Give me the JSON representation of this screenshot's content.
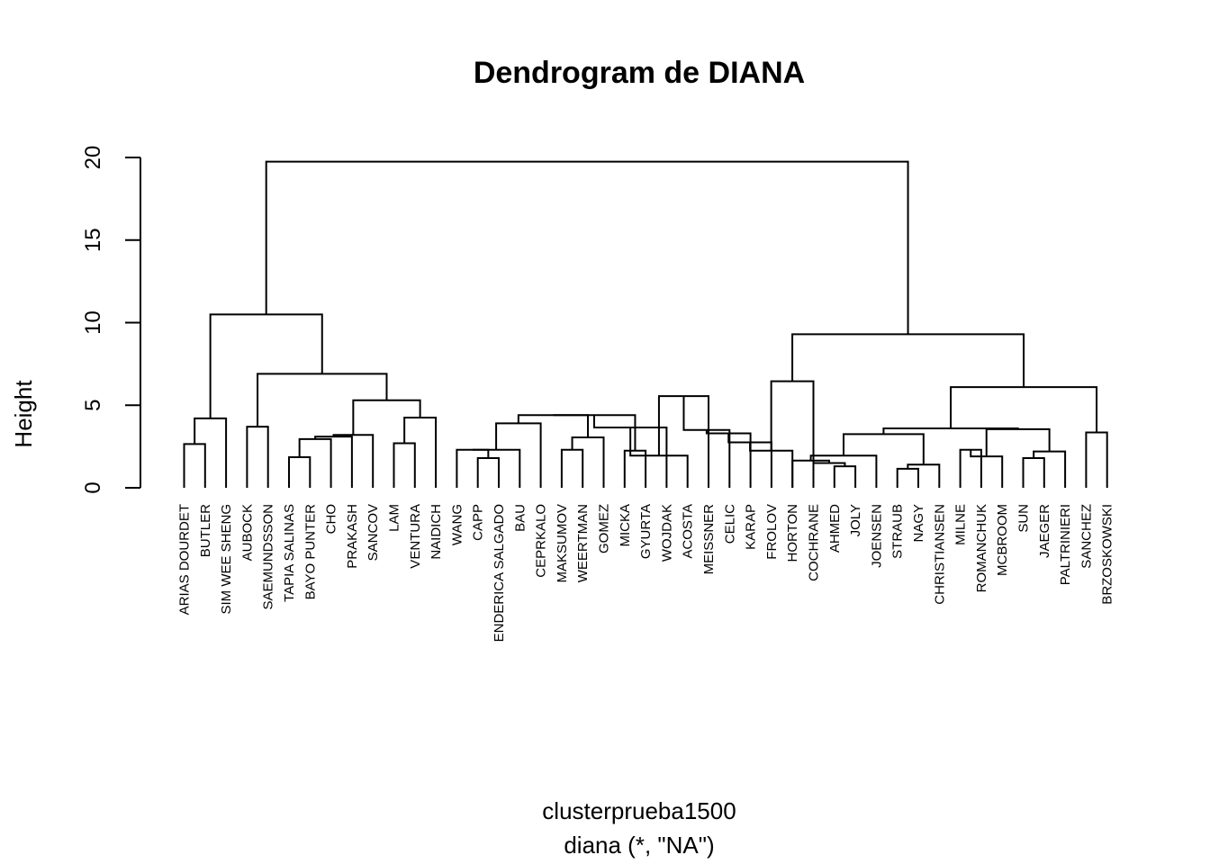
{
  "chart_data": {
    "type": "dendrogram",
    "title": "Dendrogram de DIANA",
    "ylabel": "Height",
    "xlabel": "clusterprueba1500",
    "sublabel": "diana (*, \"NA\")",
    "ylim": [
      0,
      20
    ],
    "yticks": [
      0,
      5,
      10,
      15,
      20
    ],
    "leaves": [
      "ARIAS DOURDET",
      "BUTLER",
      "SIM WEE SHENG",
      "AUBOCK",
      "SAEMUNDSSON",
      "TAPIA SALINAS",
      "BAYO PUNTER",
      "CHO",
      "PRAKASH",
      "SANCOV",
      "LAM",
      "VENTURA",
      "NAIDICH",
      "WANG",
      "CAPP",
      "ENDERICA SALGADO",
      "BAU",
      "CEPRKALO",
      "MAKSUMOV",
      "WEERTMAN",
      "GOMEZ",
      "MICKA",
      "GYURTA",
      "WOJDAK",
      "ACOSTA",
      "MEISSNER",
      "CELIC",
      "KARAP",
      "FROLOV",
      "HORTON",
      "COCHRANE",
      "AHMED",
      "JOLY",
      "JOENSEN",
      "STRAUB",
      "NAGY",
      "CHRISTIANSEN",
      "MILNE",
      "ROMANCHUK",
      "MCBROOM",
      "SUN",
      "JAEGER",
      "PALTRINIERI",
      "SANCHEZ",
      "BRZOSKOWSKI"
    ],
    "merges": [
      {
        "a": "L0",
        "b": "L1",
        "h": 2.65
      },
      {
        "a": "M0",
        "b": "L2",
        "h": 4.2
      },
      {
        "a": "L3",
        "b": "L4",
        "h": 3.7
      },
      {
        "a": "L5",
        "b": "L6",
        "h": 1.85
      },
      {
        "a": "M3",
        "b": "L7",
        "h": 2.95
      },
      {
        "a": "M4",
        "b": "L8",
        "h": 3.1
      },
      {
        "a": "M5",
        "b": "L9",
        "h": 3.2
      },
      {
        "a": "L10",
        "b": "L11",
        "h": 2.7
      },
      {
        "a": "L12",
        "b": "M7",
        "h": 4.25
      },
      {
        "a": "M6",
        "b": "M8",
        "h": 5.3
      },
      {
        "a": "M2",
        "b": "M9",
        "h": 6.9
      },
      {
        "a": "M1",
        "b": "M10",
        "h": 10.5
      },
      {
        "a": "L14",
        "b": "L15",
        "h": 1.8
      },
      {
        "a": "L13",
        "b": "M12",
        "h": 2.3
      },
      {
        "a": "M13",
        "b": "L16",
        "h": 2.3
      },
      {
        "a": "M14",
        "b": "L17",
        "h": 3.9
      },
      {
        "a": "L18",
        "b": "L19",
        "h": 2.3
      },
      {
        "a": "M16",
        "b": "L20",
        "h": 3.05
      },
      {
        "a": "L21",
        "b": "L22",
        "h": 2.25
      },
      {
        "a": "M15",
        "b": "M17",
        "h": 4.4
      },
      {
        "a": "M18",
        "b": "M19",
        "h": 4.4
      },
      {
        "a": "M20",
        "b": "L23",
        "h": 3.65
      },
      {
        "a": "M21",
        "b": "L24",
        "h": 1.95
      },
      {
        "a": "M22",
        "b": "L25",
        "h": 5.55
      },
      {
        "a": "M23",
        "b": "L26",
        "h": 3.5
      },
      {
        "a": "M24",
        "b": "L27",
        "h": 3.3
      },
      {
        "a": "M25",
        "b": "L28",
        "h": 2.75
      },
      {
        "a": "M26",
        "b": "L29",
        "h": 2.25
      },
      {
        "a": "M27",
        "b": "L30",
        "h": 6.45
      },
      {
        "a": "L31",
        "b": "L32",
        "h": 1.3
      },
      {
        "a": "L30",
        "b": "M29",
        "h": 1.5
      },
      {
        "a": "L29",
        "b": "M30",
        "h": 1.65
      },
      {
        "a": "M31",
        "b": "L33",
        "h": 1.95
      },
      {
        "a": "L34",
        "b": "L35",
        "h": 1.15
      },
      {
        "a": "M33",
        "b": "L36",
        "h": 1.4
      },
      {
        "a": "M32",
        "b": "M34",
        "h": 3.25
      },
      {
        "a": "L37",
        "b": "L38",
        "h": 2.3
      },
      {
        "a": "M36",
        "b": "L39",
        "h": 1.9
      },
      {
        "a": "L40",
        "b": "L41",
        "h": 1.8
      },
      {
        "a": "M38",
        "b": "L42",
        "h": 2.2
      },
      {
        "a": "M37",
        "b": "M39",
        "h": 3.55
      },
      {
        "a": "M35",
        "b": "M40",
        "h": 3.6
      },
      {
        "a": "L43",
        "b": "L44",
        "h": 3.35
      },
      {
        "a": "M41",
        "b": "M42",
        "h": 6.1
      },
      {
        "a": "M28",
        "b": "M43",
        "h": 9.3
      },
      {
        "a": "M11",
        "b": "M44",
        "h": 19.75
      }
    ]
  }
}
